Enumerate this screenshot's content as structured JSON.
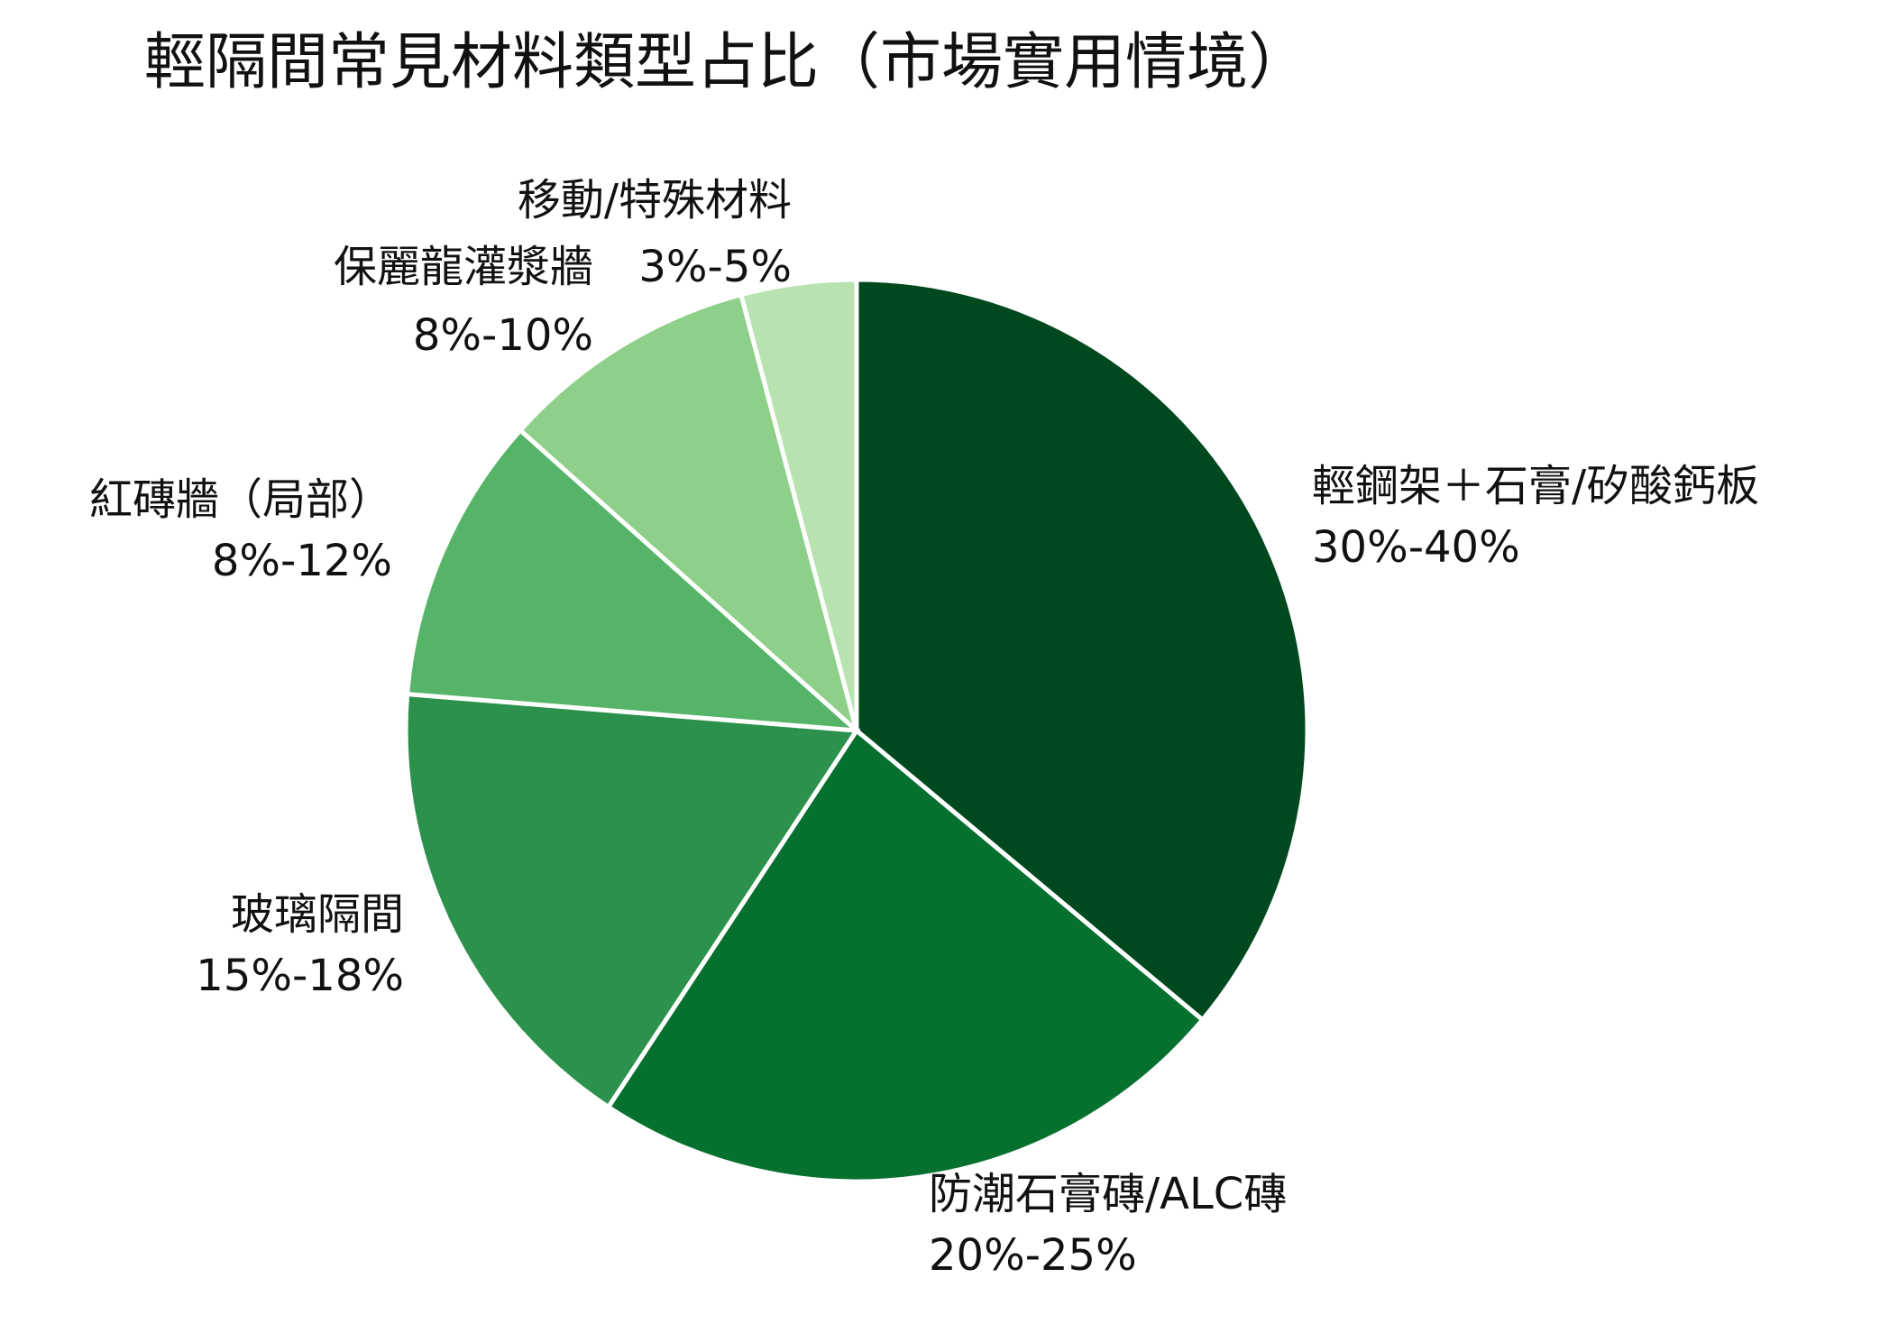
{
  "chart_data": {
    "type": "pie",
    "title": "輕隔間常見材料類型占比（市場實用情境）",
    "slices": [
      {
        "name": "輕鋼架＋石膏/矽酸鈣板",
        "range_label": "30%-40%",
        "value": 35,
        "color": "#00491e"
      },
      {
        "name": "防潮石膏磚/ALC磚",
        "range_label": "20%-25%",
        "value": 22.5,
        "color": "#06702f"
      },
      {
        "name": "玻璃隔間",
        "range_label": "15%-18%",
        "value": 16.5,
        "color": "#2c914c"
      },
      {
        "name": "紅磚牆（局部）",
        "range_label": "8%-12%",
        "value": 10,
        "color": "#56b468"
      },
      {
        "name": "保麗龍灌漿牆",
        "range_label": "8%-10%",
        "value": 9,
        "color": "#8ecf89"
      },
      {
        "name": "移動/特殊材料",
        "range_label": "3%-5%",
        "value": 4,
        "color": "#b8e3b1"
      }
    ],
    "start_angle": "12 o'clock",
    "direction": "clockwise",
    "legend": "none"
  }
}
